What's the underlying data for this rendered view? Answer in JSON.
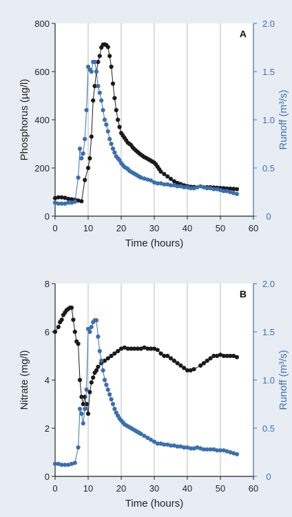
{
  "chart_data": [
    {
      "panel": "A",
      "type": "line",
      "xlabel": "Time (hours)",
      "ylabel_left": "Phosphorus (µg/l)",
      "ylabel_right": "Runoff (m³/s)",
      "xlim": [
        0,
        60
      ],
      "ylim_left": [
        0,
        800
      ],
      "ylim_right": [
        0,
        2.0
      ],
      "x_ticks": [
        "0",
        "10",
        "20",
        "30",
        "40",
        "50",
        "60"
      ],
      "y_left_ticks": [
        "0",
        "200",
        "400",
        "600",
        "800"
      ],
      "y_right_ticks": [
        "0",
        "0.5",
        "1.0",
        "1.5",
        "2.0"
      ],
      "grid": "vertical",
      "series": [
        {
          "axis": "left",
          "color": "#1a1a1a",
          "x": [
            0,
            1,
            2,
            3,
            4,
            5,
            6,
            7,
            8,
            9,
            10,
            10.5,
            11,
            11.5,
            12,
            12.5,
            13,
            13.5,
            14,
            14.5,
            15,
            15.5,
            16,
            16.5,
            17,
            17.5,
            18,
            18.5,
            19,
            19.5,
            20,
            20.5,
            21,
            21.5,
            22,
            22.5,
            23,
            23.5,
            24,
            24.5,
            25,
            25.5,
            26,
            26.5,
            27,
            27.5,
            28,
            28.5,
            29,
            29.5,
            30,
            30.5,
            31,
            31.5,
            32,
            33,
            34,
            35,
            36,
            37,
            38,
            39,
            40,
            41,
            42,
            45,
            46,
            47,
            48,
            49,
            50,
            51,
            52,
            53,
            54,
            55
          ],
          "y": [
            75,
            78,
            78,
            76,
            72,
            70,
            68,
            65,
            62,
            150,
            200,
            240,
            330,
            480,
            540,
            600,
            640,
            665,
            700,
            712,
            713,
            710,
            702,
            665,
            620,
            550,
            490,
            440,
            400,
            370,
            345,
            335,
            325,
            315,
            305,
            300,
            295,
            285,
            278,
            272,
            266,
            260,
            255,
            250,
            245,
            242,
            238,
            234,
            230,
            226,
            222,
            215,
            205,
            195,
            185,
            175,
            165,
            155,
            145,
            138,
            133,
            128,
            125,
            122,
            121,
            120,
            120,
            120,
            119,
            118,
            117,
            116,
            115,
            114,
            113,
            112
          ]
        },
        {
          "axis": "right",
          "color": "#3a6fb0",
          "x": [
            0,
            1,
            2,
            3,
            4,
            5,
            6,
            7,
            7.5,
            8,
            8.5,
            9,
            9.5,
            10,
            10.5,
            11,
            11.5,
            12,
            12.5,
            13,
            13.5,
            14,
            14.5,
            15,
            15.5,
            16,
            16.5,
            17,
            17.5,
            18,
            18.5,
            19,
            19.5,
            20,
            20.5,
            21,
            21.5,
            22,
            22.5,
            23,
            23.5,
            24,
            24.5,
            25,
            25.5,
            26,
            27,
            28,
            29,
            30,
            31,
            32,
            33,
            34,
            35,
            36,
            37,
            38,
            39,
            40,
            41,
            42,
            43,
            44,
            45,
            46,
            47,
            48,
            49,
            50,
            51,
            52,
            53,
            54,
            55
          ],
          "y": [
            0.14,
            0.13,
            0.13,
            0.13,
            0.14,
            0.14,
            0.15,
            0.4,
            0.7,
            0.6,
            0.65,
            0.8,
            1.1,
            1.55,
            1.52,
            1.5,
            1.6,
            1.6,
            1.5,
            1.35,
            1.28,
            1.2,
            1.1,
            1.0,
            0.95,
            0.88,
            0.8,
            0.75,
            0.7,
            0.66,
            0.62,
            0.6,
            0.58,
            0.55,
            0.53,
            0.51,
            0.5,
            0.49,
            0.47,
            0.46,
            0.45,
            0.44,
            0.43,
            0.42,
            0.41,
            0.4,
            0.39,
            0.38,
            0.37,
            0.35,
            0.34,
            0.34,
            0.33,
            0.33,
            0.32,
            0.32,
            0.31,
            0.31,
            0.3,
            0.3,
            0.29,
            0.29,
            0.3,
            0.31,
            0.3,
            0.29,
            0.29,
            0.28,
            0.28,
            0.27,
            0.26,
            0.26,
            0.25,
            0.24,
            0.23
          ]
        }
      ]
    },
    {
      "panel": "B",
      "type": "line",
      "xlabel": "Time (hours)",
      "ylabel_left": "Nitrate (mg/l)",
      "ylabel_right": "Runoff (m³/s)",
      "xlim": [
        0,
        60
      ],
      "ylim_left": [
        0,
        8
      ],
      "ylim_right": [
        0,
        2.0
      ],
      "x_ticks": [
        "0",
        "10",
        "20",
        "30",
        "40",
        "50",
        "60"
      ],
      "y_left_ticks": [
        "0",
        "2",
        "4",
        "6",
        "8"
      ],
      "y_right_ticks": [
        "0",
        "0.5",
        "1.0",
        "1.5",
        "2.0"
      ],
      "grid": "vertical",
      "series": [
        {
          "axis": "left",
          "color": "#1a1a1a",
          "x": [
            0,
            1,
            1.5,
            2,
            2.5,
            3,
            3.5,
            4,
            4.5,
            5,
            5.5,
            6,
            6.5,
            7,
            7.5,
            8,
            8.5,
            9,
            9.5,
            10,
            10.5,
            11,
            11.5,
            12,
            12.5,
            13,
            14,
            15,
            16,
            17,
            18,
            19,
            20,
            21,
            22,
            23,
            24,
            25,
            26,
            27,
            28,
            29,
            30,
            31,
            32,
            33,
            34,
            35,
            36,
            37,
            38,
            39,
            40,
            41,
            42,
            44,
            45,
            46,
            47,
            48,
            49,
            50,
            51,
            52,
            53,
            54,
            55
          ],
          "y": [
            6.0,
            6.2,
            6.4,
            6.5,
            6.7,
            6.8,
            6.9,
            6.95,
            7.0,
            7.0,
            6.5,
            6.0,
            5.6,
            5.5,
            4.0,
            3.3,
            3.0,
            3.3,
            3.0,
            2.6,
            3.5,
            3.9,
            4.1,
            4.3,
            4.4,
            4.55,
            4.7,
            4.8,
            4.9,
            5.0,
            5.1,
            5.2,
            5.3,
            5.35,
            5.3,
            5.3,
            5.3,
            5.3,
            5.3,
            5.35,
            5.3,
            5.3,
            5.3,
            5.25,
            5.1,
            5.0,
            5.0,
            4.9,
            4.8,
            4.7,
            4.6,
            4.5,
            4.4,
            4.4,
            4.45,
            4.6,
            4.7,
            4.8,
            4.9,
            5.0,
            5.0,
            5.05,
            5.0,
            5.0,
            5.0,
            5.0,
            4.95
          ]
        },
        {
          "axis": "right",
          "color": "#3a6fb0",
          "x": [
            0,
            1,
            2,
            3,
            4,
            5,
            6,
            7,
            7.5,
            8,
            8.5,
            9,
            9.5,
            10,
            10.5,
            11,
            11.5,
            12,
            12.5,
            13,
            13.5,
            14,
            14.5,
            15,
            15.5,
            16,
            16.5,
            17,
            17.5,
            18,
            18.5,
            19,
            19.5,
            20,
            20.5,
            21,
            21.5,
            22,
            22.5,
            23,
            23.5,
            24,
            24.5,
            25,
            25.5,
            26,
            27,
            28,
            29,
            30,
            31,
            32,
            33,
            34,
            35,
            36,
            37,
            38,
            39,
            40,
            41,
            42,
            43,
            44,
            45,
            46,
            47,
            48,
            49,
            50,
            51,
            52,
            53,
            54,
            55
          ],
          "y": [
            0.13,
            0.13,
            0.12,
            0.12,
            0.12,
            0.13,
            0.14,
            0.3,
            0.7,
            0.65,
            0.55,
            0.7,
            0.9,
            1.53,
            1.5,
            1.55,
            1.6,
            1.62,
            1.62,
            1.45,
            1.3,
            1.2,
            1.1,
            1.0,
            0.95,
            0.9,
            0.85,
            0.8,
            0.75,
            0.7,
            0.66,
            0.63,
            0.6,
            0.58,
            0.56,
            0.54,
            0.53,
            0.52,
            0.51,
            0.5,
            0.49,
            0.48,
            0.47,
            0.46,
            0.45,
            0.44,
            0.42,
            0.4,
            0.38,
            0.36,
            0.34,
            0.34,
            0.33,
            0.33,
            0.32,
            0.32,
            0.31,
            0.31,
            0.3,
            0.3,
            0.29,
            0.29,
            0.3,
            0.29,
            0.28,
            0.28,
            0.28,
            0.28,
            0.27,
            0.27,
            0.27,
            0.26,
            0.25,
            0.24,
            0.23
          ]
        }
      ]
    }
  ]
}
